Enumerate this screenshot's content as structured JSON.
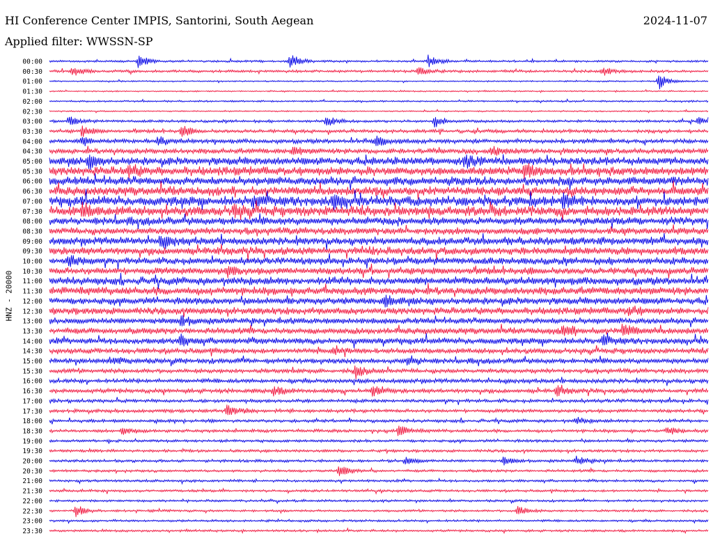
{
  "header": {
    "title": "HI Conference Center IMPIS, Santorini, South Aegean",
    "date": "2024-11-07",
    "filter": "Applied filter: WWSSN-SP"
  },
  "chart_data": {
    "type": "line",
    "title": "HI Conference Center IMPIS, Santorini, South Aegean",
    "ylabel": "HNZ - 20000",
    "row_labels": [
      "00:00",
      "00:30",
      "01:00",
      "01:30",
      "02:00",
      "02:30",
      "03:00",
      "03:30",
      "04:00",
      "04:30",
      "05:00",
      "05:30",
      "06:00",
      "06:30",
      "07:00",
      "07:30",
      "08:00",
      "08:30",
      "09:00",
      "09:30",
      "10:00",
      "10:30",
      "11:00",
      "11:30",
      "12:00",
      "12:30",
      "13:00",
      "13:30",
      "14:00",
      "14:30",
      "15:00",
      "15:30",
      "16:00",
      "16:30",
      "17:00",
      "17:30",
      "18:00",
      "18:30",
      "19:00",
      "19:30",
      "20:00",
      "20:30",
      "21:00",
      "21:30",
      "22:00",
      "22:30",
      "23:00",
      "23:30"
    ],
    "row_colors": [
      "#0000e6",
      "#f0143c"
    ],
    "noise_level": [
      1.2,
      1.5,
      0.8,
      0.8,
      1.0,
      0.8,
      1.5,
      2.0,
      2.5,
      3.0,
      4.5,
      5.0,
      5.0,
      5.0,
      5.5,
      5.5,
      4.5,
      4.0,
      4.5,
      4.5,
      4.0,
      4.0,
      4.5,
      4.5,
      4.0,
      4.0,
      3.5,
      3.5,
      3.5,
      3.0,
      3.0,
      2.5,
      2.5,
      2.5,
      2.0,
      2.0,
      1.8,
      1.8,
      1.6,
      1.6,
      1.6,
      1.5,
      1.4,
      1.4,
      1.3,
      1.3,
      1.3,
      1.3
    ],
    "events": [
      {
        "row": 0,
        "t": 0.135,
        "amp": 10
      },
      {
        "row": 0,
        "t": 0.365,
        "amp": 12
      },
      {
        "row": 0,
        "t": 0.575,
        "amp": 10
      },
      {
        "row": 1,
        "t": 0.035,
        "amp": 8
      },
      {
        "row": 1,
        "t": 0.56,
        "amp": 6
      },
      {
        "row": 1,
        "t": 0.84,
        "amp": 6
      },
      {
        "row": 2,
        "t": 0.925,
        "amp": 12
      },
      {
        "row": 6,
        "t": 0.03,
        "amp": 7
      },
      {
        "row": 6,
        "t": 0.42,
        "amp": 8
      },
      {
        "row": 6,
        "t": 0.585,
        "amp": 9
      },
      {
        "row": 6,
        "t": 0.985,
        "amp": 7
      },
      {
        "row": 7,
        "t": 0.05,
        "amp": 8
      },
      {
        "row": 7,
        "t": 0.2,
        "amp": 8
      },
      {
        "row": 8,
        "t": 0.05,
        "amp": 6
      },
      {
        "row": 8,
        "t": 0.165,
        "amp": 7
      },
      {
        "row": 8,
        "t": 0.495,
        "amp": 8
      },
      {
        "row": 9,
        "t": 0.37,
        "amp": 6
      },
      {
        "row": 9,
        "t": 0.67,
        "amp": 6
      },
      {
        "row": 10,
        "t": 0.06,
        "amp": 9
      },
      {
        "row": 10,
        "t": 0.63,
        "amp": 8
      },
      {
        "row": 11,
        "t": 0.12,
        "amp": 8
      },
      {
        "row": 11,
        "t": 0.72,
        "amp": 9
      },
      {
        "row": 14,
        "t": 0.31,
        "amp": 10
      },
      {
        "row": 14,
        "t": 0.43,
        "amp": 10
      },
      {
        "row": 14,
        "t": 0.78,
        "amp": 10
      },
      {
        "row": 15,
        "t": 0.05,
        "amp": 9
      },
      {
        "row": 15,
        "t": 0.28,
        "amp": 9
      },
      {
        "row": 18,
        "t": 0.17,
        "amp": 8
      },
      {
        "row": 20,
        "t": 0.03,
        "amp": 8
      },
      {
        "row": 21,
        "t": 0.27,
        "amp": 7
      },
      {
        "row": 24,
        "t": 0.51,
        "amp": 7
      },
      {
        "row": 25,
        "t": 0.88,
        "amp": 7
      },
      {
        "row": 26,
        "t": 0.2,
        "amp": 7
      },
      {
        "row": 27,
        "t": 0.78,
        "amp": 9
      },
      {
        "row": 27,
        "t": 0.87,
        "amp": 11
      },
      {
        "row": 28,
        "t": 0.2,
        "amp": 7
      },
      {
        "row": 28,
        "t": 0.84,
        "amp": 8
      },
      {
        "row": 29,
        "t": 0.43,
        "amp": 7
      },
      {
        "row": 30,
        "t": 0.1,
        "amp": 5
      },
      {
        "row": 30,
        "t": 0.545,
        "amp": 8
      },
      {
        "row": 31,
        "t": 0.465,
        "amp": 9
      },
      {
        "row": 33,
        "t": 0.34,
        "amp": 7
      },
      {
        "row": 33,
        "t": 0.49,
        "amp": 7
      },
      {
        "row": 33,
        "t": 0.77,
        "amp": 7
      },
      {
        "row": 35,
        "t": 0.27,
        "amp": 8
      },
      {
        "row": 36,
        "t": 0.8,
        "amp": 5
      },
      {
        "row": 37,
        "t": 0.11,
        "amp": 6
      },
      {
        "row": 37,
        "t": 0.53,
        "amp": 8
      },
      {
        "row": 37,
        "t": 0.94,
        "amp": 6
      },
      {
        "row": 40,
        "t": 0.54,
        "amp": 6
      },
      {
        "row": 40,
        "t": 0.69,
        "amp": 6
      },
      {
        "row": 40,
        "t": 0.8,
        "amp": 7
      },
      {
        "row": 41,
        "t": 0.44,
        "amp": 9
      },
      {
        "row": 45,
        "t": 0.04,
        "amp": 10
      },
      {
        "row": 45,
        "t": 0.71,
        "amp": 8
      }
    ]
  }
}
